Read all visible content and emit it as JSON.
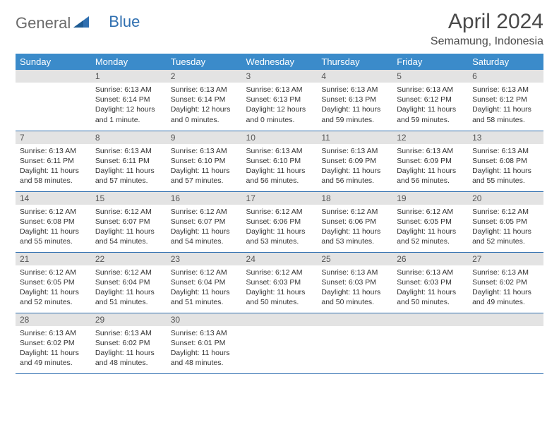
{
  "brand": {
    "part1": "General",
    "part2": "Blue"
  },
  "title": "April 2024",
  "location": "Semamung, Indonesia",
  "colors": {
    "header_bg": "#3b8bca",
    "header_text": "#ffffff",
    "daynum_bg": "#e3e3e3",
    "row_border": "#2f6fb0",
    "logo_gray": "#6b6b6b",
    "logo_blue": "#2f6fb0",
    "text": "#333333"
  },
  "weekdays": [
    "Sunday",
    "Monday",
    "Tuesday",
    "Wednesday",
    "Thursday",
    "Friday",
    "Saturday"
  ],
  "weeks": [
    [
      {
        "n": "",
        "l1": "",
        "l2": "",
        "l3": "",
        "l4": ""
      },
      {
        "n": "1",
        "l1": "Sunrise: 6:13 AM",
        "l2": "Sunset: 6:14 PM",
        "l3": "Daylight: 12 hours",
        "l4": "and 1 minute."
      },
      {
        "n": "2",
        "l1": "Sunrise: 6:13 AM",
        "l2": "Sunset: 6:14 PM",
        "l3": "Daylight: 12 hours",
        "l4": "and 0 minutes."
      },
      {
        "n": "3",
        "l1": "Sunrise: 6:13 AM",
        "l2": "Sunset: 6:13 PM",
        "l3": "Daylight: 12 hours",
        "l4": "and 0 minutes."
      },
      {
        "n": "4",
        "l1": "Sunrise: 6:13 AM",
        "l2": "Sunset: 6:13 PM",
        "l3": "Daylight: 11 hours",
        "l4": "and 59 minutes."
      },
      {
        "n": "5",
        "l1": "Sunrise: 6:13 AM",
        "l2": "Sunset: 6:12 PM",
        "l3": "Daylight: 11 hours",
        "l4": "and 59 minutes."
      },
      {
        "n": "6",
        "l1": "Sunrise: 6:13 AM",
        "l2": "Sunset: 6:12 PM",
        "l3": "Daylight: 11 hours",
        "l4": "and 58 minutes."
      }
    ],
    [
      {
        "n": "7",
        "l1": "Sunrise: 6:13 AM",
        "l2": "Sunset: 6:11 PM",
        "l3": "Daylight: 11 hours",
        "l4": "and 58 minutes."
      },
      {
        "n": "8",
        "l1": "Sunrise: 6:13 AM",
        "l2": "Sunset: 6:11 PM",
        "l3": "Daylight: 11 hours",
        "l4": "and 57 minutes."
      },
      {
        "n": "9",
        "l1": "Sunrise: 6:13 AM",
        "l2": "Sunset: 6:10 PM",
        "l3": "Daylight: 11 hours",
        "l4": "and 57 minutes."
      },
      {
        "n": "10",
        "l1": "Sunrise: 6:13 AM",
        "l2": "Sunset: 6:10 PM",
        "l3": "Daylight: 11 hours",
        "l4": "and 56 minutes."
      },
      {
        "n": "11",
        "l1": "Sunrise: 6:13 AM",
        "l2": "Sunset: 6:09 PM",
        "l3": "Daylight: 11 hours",
        "l4": "and 56 minutes."
      },
      {
        "n": "12",
        "l1": "Sunrise: 6:13 AM",
        "l2": "Sunset: 6:09 PM",
        "l3": "Daylight: 11 hours",
        "l4": "and 56 minutes."
      },
      {
        "n": "13",
        "l1": "Sunrise: 6:13 AM",
        "l2": "Sunset: 6:08 PM",
        "l3": "Daylight: 11 hours",
        "l4": "and 55 minutes."
      }
    ],
    [
      {
        "n": "14",
        "l1": "Sunrise: 6:12 AM",
        "l2": "Sunset: 6:08 PM",
        "l3": "Daylight: 11 hours",
        "l4": "and 55 minutes."
      },
      {
        "n": "15",
        "l1": "Sunrise: 6:12 AM",
        "l2": "Sunset: 6:07 PM",
        "l3": "Daylight: 11 hours",
        "l4": "and 54 minutes."
      },
      {
        "n": "16",
        "l1": "Sunrise: 6:12 AM",
        "l2": "Sunset: 6:07 PM",
        "l3": "Daylight: 11 hours",
        "l4": "and 54 minutes."
      },
      {
        "n": "17",
        "l1": "Sunrise: 6:12 AM",
        "l2": "Sunset: 6:06 PM",
        "l3": "Daylight: 11 hours",
        "l4": "and 53 minutes."
      },
      {
        "n": "18",
        "l1": "Sunrise: 6:12 AM",
        "l2": "Sunset: 6:06 PM",
        "l3": "Daylight: 11 hours",
        "l4": "and 53 minutes."
      },
      {
        "n": "19",
        "l1": "Sunrise: 6:12 AM",
        "l2": "Sunset: 6:05 PM",
        "l3": "Daylight: 11 hours",
        "l4": "and 52 minutes."
      },
      {
        "n": "20",
        "l1": "Sunrise: 6:12 AM",
        "l2": "Sunset: 6:05 PM",
        "l3": "Daylight: 11 hours",
        "l4": "and 52 minutes."
      }
    ],
    [
      {
        "n": "21",
        "l1": "Sunrise: 6:12 AM",
        "l2": "Sunset: 6:05 PM",
        "l3": "Daylight: 11 hours",
        "l4": "and 52 minutes."
      },
      {
        "n": "22",
        "l1": "Sunrise: 6:12 AM",
        "l2": "Sunset: 6:04 PM",
        "l3": "Daylight: 11 hours",
        "l4": "and 51 minutes."
      },
      {
        "n": "23",
        "l1": "Sunrise: 6:12 AM",
        "l2": "Sunset: 6:04 PM",
        "l3": "Daylight: 11 hours",
        "l4": "and 51 minutes."
      },
      {
        "n": "24",
        "l1": "Sunrise: 6:12 AM",
        "l2": "Sunset: 6:03 PM",
        "l3": "Daylight: 11 hours",
        "l4": "and 50 minutes."
      },
      {
        "n": "25",
        "l1": "Sunrise: 6:13 AM",
        "l2": "Sunset: 6:03 PM",
        "l3": "Daylight: 11 hours",
        "l4": "and 50 minutes."
      },
      {
        "n": "26",
        "l1": "Sunrise: 6:13 AM",
        "l2": "Sunset: 6:03 PM",
        "l3": "Daylight: 11 hours",
        "l4": "and 50 minutes."
      },
      {
        "n": "27",
        "l1": "Sunrise: 6:13 AM",
        "l2": "Sunset: 6:02 PM",
        "l3": "Daylight: 11 hours",
        "l4": "and 49 minutes."
      }
    ],
    [
      {
        "n": "28",
        "l1": "Sunrise: 6:13 AM",
        "l2": "Sunset: 6:02 PM",
        "l3": "Daylight: 11 hours",
        "l4": "and 49 minutes."
      },
      {
        "n": "29",
        "l1": "Sunrise: 6:13 AM",
        "l2": "Sunset: 6:02 PM",
        "l3": "Daylight: 11 hours",
        "l4": "and 48 minutes."
      },
      {
        "n": "30",
        "l1": "Sunrise: 6:13 AM",
        "l2": "Sunset: 6:01 PM",
        "l3": "Daylight: 11 hours",
        "l4": "and 48 minutes."
      },
      {
        "n": "",
        "l1": "",
        "l2": "",
        "l3": "",
        "l4": ""
      },
      {
        "n": "",
        "l1": "",
        "l2": "",
        "l3": "",
        "l4": ""
      },
      {
        "n": "",
        "l1": "",
        "l2": "",
        "l3": "",
        "l4": ""
      },
      {
        "n": "",
        "l1": "",
        "l2": "",
        "l3": "",
        "l4": ""
      }
    ]
  ]
}
